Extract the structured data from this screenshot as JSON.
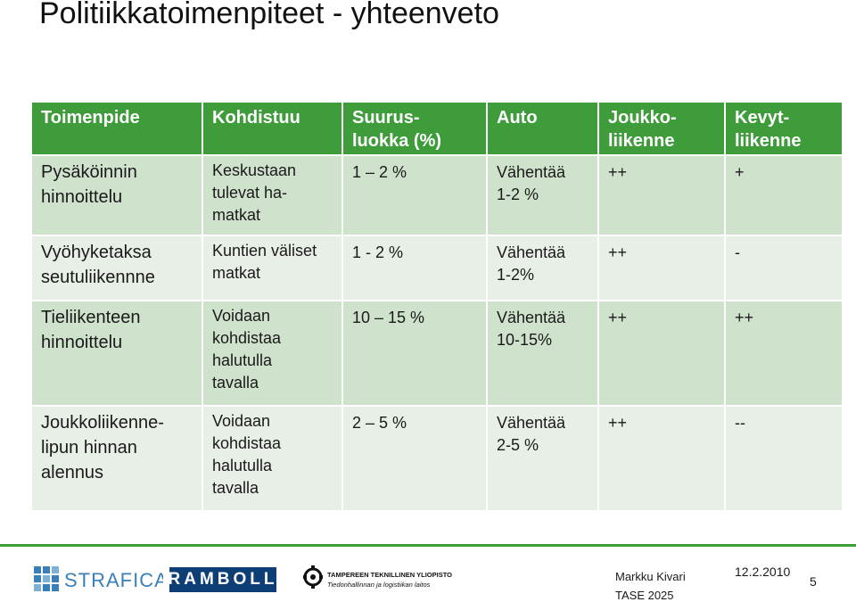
{
  "title": "Politiikkatoimenpiteet - yhteenveto",
  "table": {
    "headers": [
      [
        "Toimenpide"
      ],
      [
        "Kohdistuu"
      ],
      [
        "Suurus-",
        "luokka (%)"
      ],
      [
        "Auto"
      ],
      [
        "Joukko-",
        "liikenne"
      ],
      [
        "Kevyt-",
        "liikenne"
      ]
    ],
    "rows": [
      {
        "toimenpide": [
          "Pysäköinnin",
          "hinnoittelu"
        ],
        "kohdistuu": [
          "Keskustaan",
          "tulevat ha-",
          "matkat"
        ],
        "suuruus": [
          "1 – 2 %"
        ],
        "auto": [
          "Vähentää",
          "1-2 %"
        ],
        "joukko": "++",
        "kevyt": "+"
      },
      {
        "toimenpide": [
          "Vyöhyketaksa",
          "seutuliikennne"
        ],
        "kohdistuu": [
          "Kuntien väliset",
          "matkat"
        ],
        "suuruus": [
          "1 - 2 %"
        ],
        "auto": [
          "Vähentää",
          "1-2%"
        ],
        "joukko": "++",
        "kevyt": "-"
      },
      {
        "toimenpide": [
          "Tieliikenteen",
          "hinnoittelu"
        ],
        "kohdistuu": [
          "Voidaan",
          "kohdistaa",
          "halutulla",
          "tavalla"
        ],
        "suuruus": [
          "10 – 15 %"
        ],
        "auto": [
          "Vähentää",
          "10-15%"
        ],
        "joukko": "++",
        "kevyt": "++"
      },
      {
        "toimenpide": [
          "Joukkoliikenne-",
          "lipun hinnan",
          "alennus"
        ],
        "kohdistuu": [
          "Voidaan",
          "kohdistaa",
          "halutulla",
          "tavalla"
        ],
        "suuruus": [
          "2 – 5 %"
        ],
        "auto": [
          "Vähentää",
          "2-5 %"
        ],
        "joukko": "++",
        "kevyt": "--"
      }
    ]
  },
  "footer": {
    "logo_strafica": "STRAFICA",
    "logo_ramboll": "RAMBOLL",
    "logo_tty_line1": "TAMPEREEN TEKNILLINEN YLIOPISTO",
    "logo_tty_line2": "Tiedonhallinnan ja logistiikan laitos",
    "author": "Markku Kivari",
    "event": "TASE 2025",
    "date": "12.2.2010",
    "page": "5"
  },
  "colors": {
    "header_green": "#3e9c3a",
    "row_dark": "#cfe3cc",
    "row_light": "#e8efe6",
    "ramboll_blue": "#0d3f76",
    "strafica_blue": "#3b7fb8"
  }
}
